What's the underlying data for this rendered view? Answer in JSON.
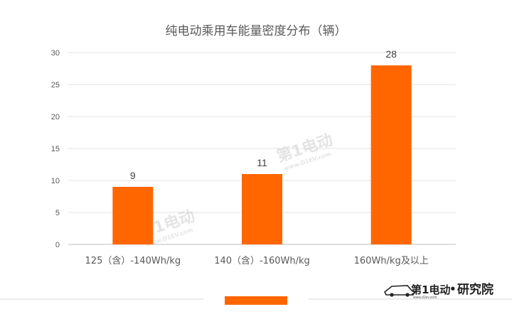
{
  "chart_data": {
    "type": "bar",
    "title": "纯电动乘用车能量密度分布（辆）",
    "categories": [
      "125（含）-140Wh/kg",
      "140（含）-160Wh/kg",
      "160Wh/kg及以上"
    ],
    "values": [
      9,
      11,
      28
    ],
    "data_labels": [
      "9",
      "11",
      "28"
    ],
    "ylim": [
      0,
      30
    ],
    "yticks": [
      0,
      5,
      10,
      15,
      20,
      25,
      30
    ],
    "grid": true,
    "legend": "bottom-center",
    "bar_color": "#FF6600"
  },
  "watermark": {
    "text": "第1电动",
    "url": "www.D1EV.com"
  },
  "brand": {
    "logo_text": "第1电动",
    "suffix": "研究院",
    "url": "www.d1ev.com"
  }
}
